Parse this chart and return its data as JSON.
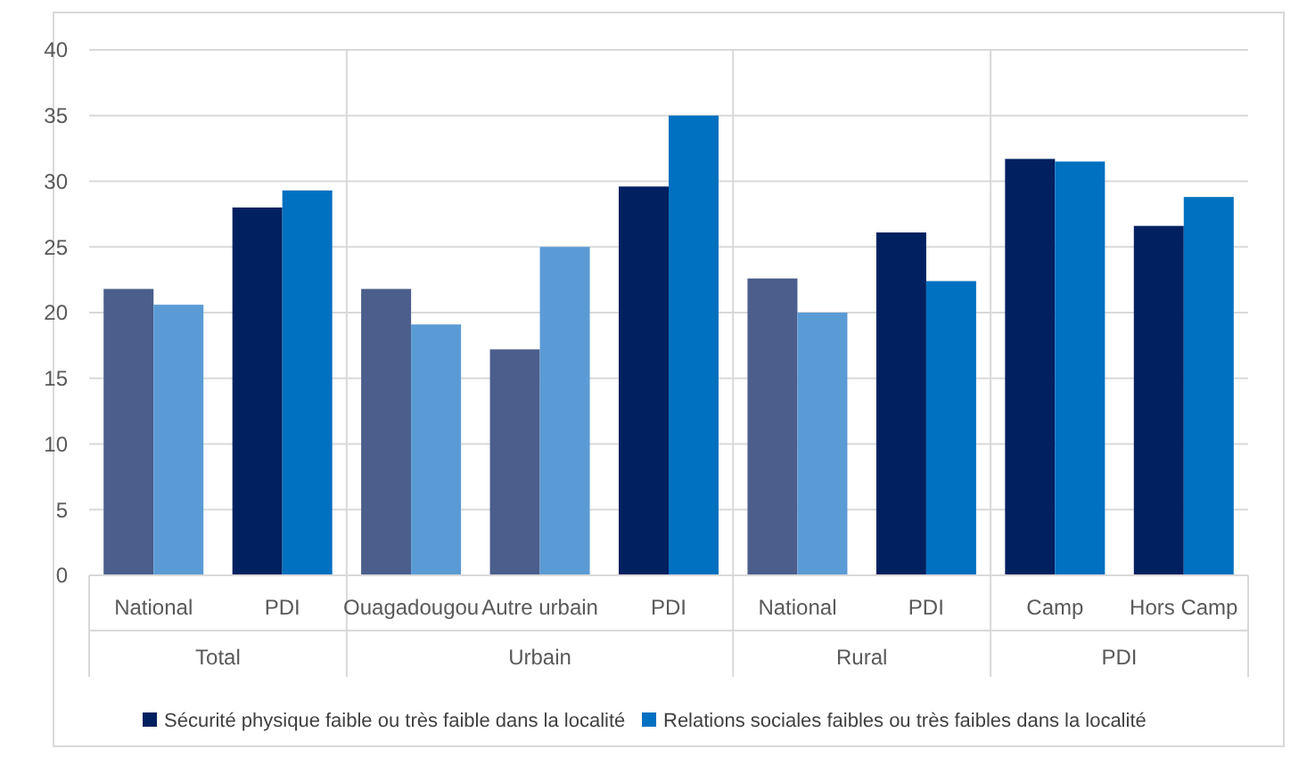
{
  "chart_data": {
    "type": "bar",
    "categories": [
      "National",
      "PDI",
      "Ouagadougou",
      "Autre urbain",
      "PDI",
      "National",
      "PDI",
      "Camp",
      "Hors Camp"
    ],
    "series": [
      {
        "name": "Sécurité physique faible ou très faible dans la localité",
        "color": "#002060",
        "colors": [
          "#4b5e8c",
          "#002060",
          "#4b5e8c",
          "#4b5e8c",
          "#002060",
          "#4b5e8c",
          "#002060",
          "#002060",
          "#002060"
        ],
        "values": [
          21.8,
          28.0,
          21.8,
          17.2,
          29.6,
          22.6,
          26.1,
          31.7,
          26.6
        ]
      },
      {
        "name": "Relations sociales faibles ou très faibles dans la localité",
        "color": "#0070c0",
        "colors": [
          "#5b9bd5",
          "#0070c0",
          "#5b9bd5",
          "#5b9bd5",
          "#0070c0",
          "#5b9bd5",
          "#0070c0",
          "#0070c0",
          "#0070c0"
        ],
        "values": [
          20.6,
          29.3,
          19.1,
          25.0,
          35.0,
          20.0,
          22.4,
          31.5,
          28.8
        ]
      }
    ],
    "annotations": [
      "Total",
      "Urbain",
      "Rural",
      "PDI"
    ],
    "ylim": [
      0,
      40
    ],
    "yticks": [
      0,
      5,
      10,
      15,
      20,
      25,
      30,
      35,
      40
    ],
    "grid": "y",
    "legend": "bottom"
  }
}
